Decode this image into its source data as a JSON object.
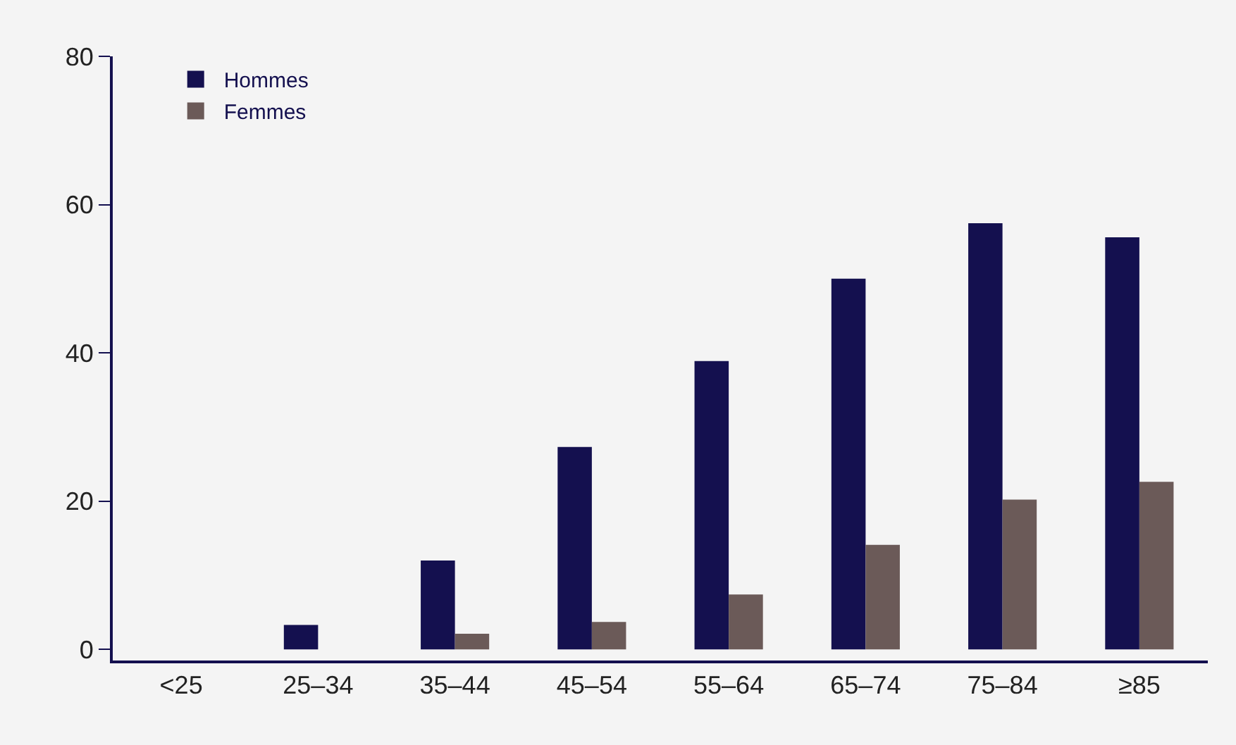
{
  "chart_data": {
    "type": "bar",
    "categories": [
      "<25",
      "25–34",
      "35–44",
      "45–54",
      "55–64",
      "65–74",
      "75–84",
      "≥85"
    ],
    "series": [
      {
        "name": "Hommes",
        "color": "#14104f",
        "values": [
          0,
          3.3,
          12.0,
          27.3,
          38.9,
          50.0,
          57.5,
          55.6
        ]
      },
      {
        "name": "Femmes",
        "color": "#6b5a58",
        "values": [
          0,
          0,
          2.1,
          3.7,
          7.4,
          14.1,
          20.2,
          22.6
        ]
      }
    ],
    "ylim": [
      -1.5,
      80
    ],
    "yticks": [
      0,
      20,
      40,
      60,
      80
    ],
    "grid": false,
    "legend": "top left"
  }
}
